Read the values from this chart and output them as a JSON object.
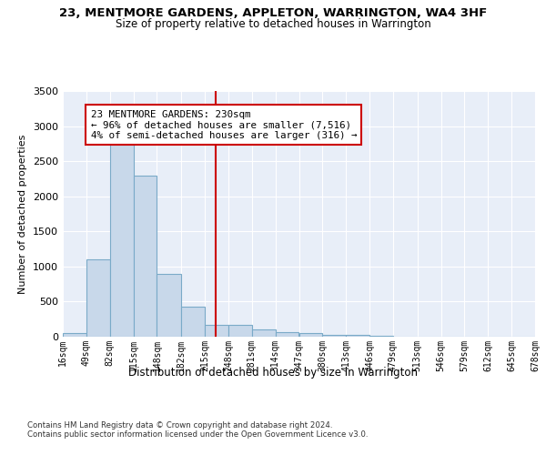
{
  "title": "23, MENTMORE GARDENS, APPLETON, WARRINGTON, WA4 3HF",
  "subtitle": "Size of property relative to detached houses in Warrington",
  "xlabel": "Distribution of detached houses by size in Warrington",
  "ylabel": "Number of detached properties",
  "bin_labels": [
    "16sqm",
    "49sqm",
    "82sqm",
    "115sqm",
    "148sqm",
    "182sqm",
    "215sqm",
    "248sqm",
    "281sqm",
    "314sqm",
    "347sqm",
    "380sqm",
    "413sqm",
    "446sqm",
    "479sqm",
    "513sqm",
    "546sqm",
    "579sqm",
    "612sqm",
    "645sqm",
    "678sqm"
  ],
  "bin_edges": [
    16,
    49,
    82,
    115,
    148,
    182,
    215,
    248,
    281,
    314,
    347,
    380,
    413,
    446,
    479,
    513,
    546,
    579,
    612,
    645,
    678
  ],
  "bar_heights": [
    50,
    1100,
    2750,
    2300,
    900,
    425,
    175,
    175,
    100,
    65,
    50,
    30,
    20,
    10,
    5,
    3,
    2,
    1,
    1,
    0,
    0
  ],
  "bar_color": "#c8d8ea",
  "bar_edge_color": "#7aaac8",
  "bar_edge_width": 0.8,
  "red_line_x": 230,
  "red_line_color": "#cc0000",
  "annotation_text": "23 MENTMORE GARDENS: 230sqm\n← 96% of detached houses are smaller (7,516)\n4% of semi-detached houses are larger (316) →",
  "annotation_box_color": "#ffffff",
  "annotation_box_edge": "#cc0000",
  "ylim": [
    0,
    3500
  ],
  "yticks": [
    0,
    500,
    1000,
    1500,
    2000,
    2500,
    3000,
    3500
  ],
  "footer_text": "Contains HM Land Registry data © Crown copyright and database right 2024.\nContains public sector information licensed under the Open Government Licence v3.0.",
  "bg_color": "#ffffff",
  "plot_bg_color": "#e8eef8"
}
